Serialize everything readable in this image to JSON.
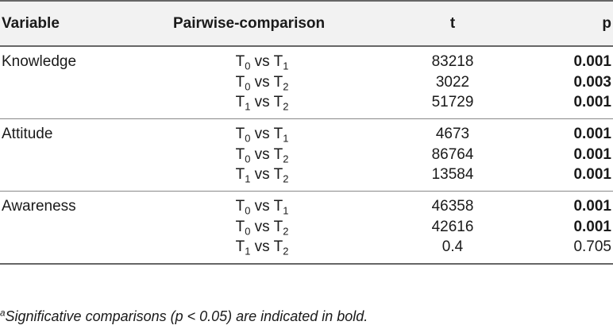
{
  "headers": {
    "variable": "Variable",
    "pairwise": "Pairwise-comparison",
    "t": "t",
    "p": "p"
  },
  "groups": [
    {
      "variable": "Knowledge",
      "rows": [
        {
          "a": "0",
          "b": "1",
          "t": "83218",
          "p": "0.001",
          "bold": true
        },
        {
          "a": "0",
          "b": "2",
          "t": "3022",
          "p": "0.003",
          "bold": true
        },
        {
          "a": "1",
          "b": "2",
          "t": "51729",
          "p": "0.001",
          "bold": true
        }
      ]
    },
    {
      "variable": "Attitude",
      "rows": [
        {
          "a": "0",
          "b": "1",
          "t": "4673",
          "p": "0.001",
          "bold": true
        },
        {
          "a": "0",
          "b": "2",
          "t": "86764",
          "p": "0.001",
          "bold": true
        },
        {
          "a": "1",
          "b": "2",
          "t": "13584",
          "p": "0.001",
          "bold": true
        }
      ]
    },
    {
      "variable": "Awareness",
      "rows": [
        {
          "a": "0",
          "b": "1",
          "t": "46358",
          "p": "0.001",
          "bold": true
        },
        {
          "a": "0",
          "b": "2",
          "t": "42616",
          "p": "0.001",
          "bold": true
        },
        {
          "a": "1",
          "b": "2",
          "t": "0.4",
          "p": "0.705",
          "bold": false
        }
      ]
    }
  ],
  "comparison": {
    "prefix": "T",
    "separator": " vs "
  },
  "footnote": {
    "marker": "a",
    "text": "Significative comparisons (p < 0.05) are indicated in bold."
  }
}
